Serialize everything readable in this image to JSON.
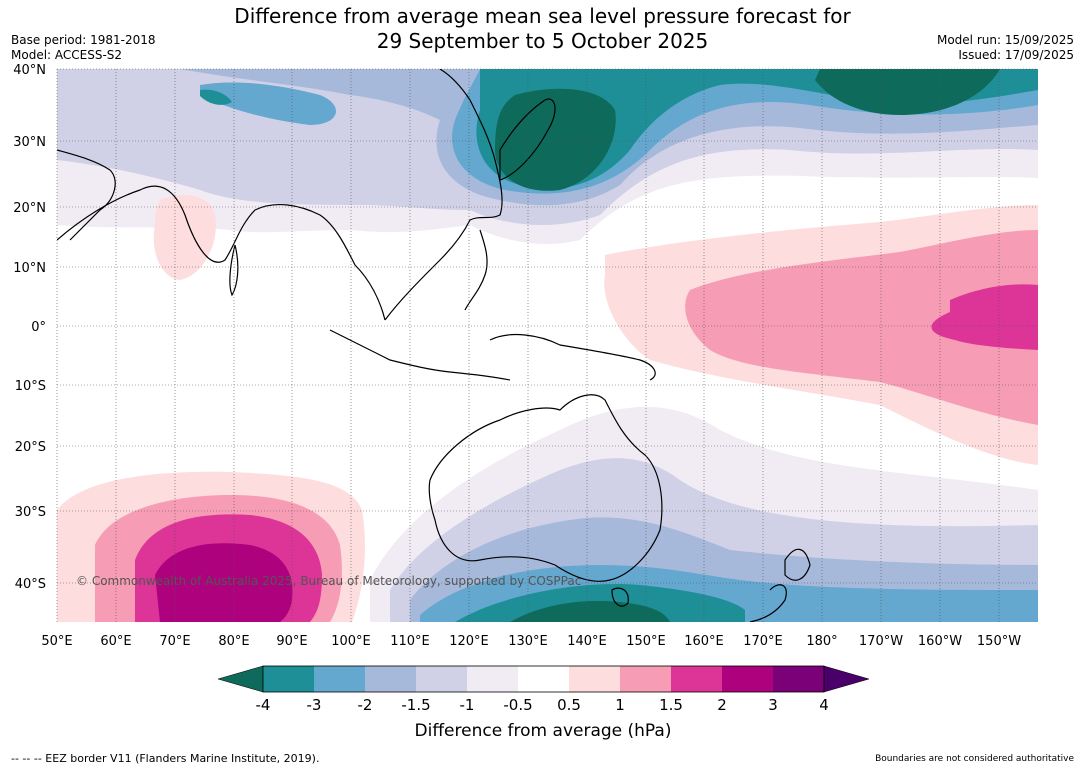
{
  "header": {
    "title_line1": "Difference from average mean sea level pressure forecast for",
    "title_line2": "29 September to 5 October 2025",
    "base_period": "Base period: 1981-2018",
    "model": "Model: ACCESS-S2",
    "model_run": "Model run: 15/09/2025",
    "issued": "Issued: 17/09/2025"
  },
  "map": {
    "lat_labels": [
      "40°N",
      "30°N",
      "20°N",
      "10°N",
      "0°",
      "10°S",
      "20°S",
      "30°S",
      "40°S"
    ],
    "lon_labels": [
      "50°E",
      "60°E",
      "70°E",
      "80°E",
      "90°E",
      "100°E",
      "110°E",
      "120°E",
      "130°E",
      "140°E",
      "150°E",
      "160°E",
      "170°E",
      "180°",
      "170°W",
      "160°W",
      "150°W"
    ],
    "copyright": "© Commonwealth of Australia 2025, Bureau of Meteorology, supported by COSPPac"
  },
  "colorbar": {
    "title": "Difference from average (hPa)",
    "ticks": [
      "-4",
      "-3",
      "-2",
      "-1.5",
      "-1",
      "-0.5",
      "0.5",
      "1",
      "1.5",
      "2",
      "3",
      "4"
    ],
    "colors": [
      "#0e6b5c",
      "#1f8f97",
      "#64a8d0",
      "#a6b9db",
      "#d0d1e6",
      "#f1ecf4",
      "#ffffff",
      "#fddddd",
      "#f79cb5",
      "#dd3497",
      "#ae017e",
      "#7a0177",
      "#49006a"
    ]
  },
  "footer": {
    "eez": "--  --  -- EEZ border V11 (Flanders Marine Institute, 2019).",
    "boundaries": "Boundaries are not considered authoritative"
  }
}
